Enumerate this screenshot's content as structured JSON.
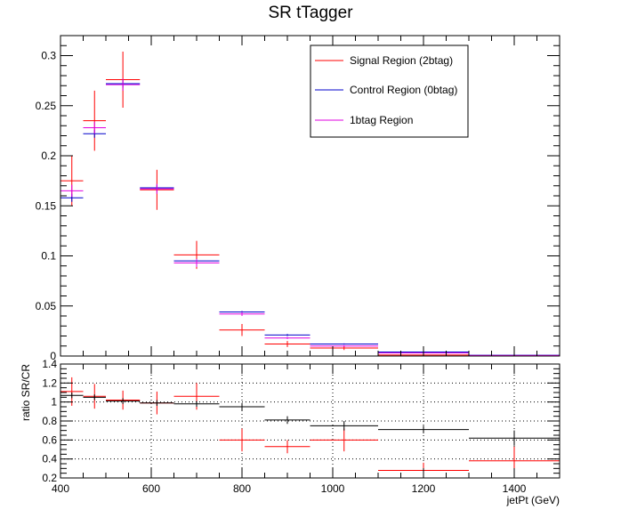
{
  "title": "SR tTagger",
  "colors": {
    "signal": "#ff0000",
    "control": "#0000cc",
    "onebtag": "#e000e0",
    "ratio": "#000000"
  },
  "legend": {
    "placement": "top-right",
    "entries": [
      "Signal Region (2btag)",
      "Control Region (0btag)",
      "1btag Region"
    ]
  },
  "chart_data": [
    {
      "type": "scatter",
      "title": "SR tTagger",
      "xlim": [
        400,
        1500
      ],
      "ylim": [
        0,
        0.32
      ],
      "x_ticks": [
        400,
        600,
        800,
        1000,
        1200,
        1400
      ],
      "y_ticks": [
        0,
        0.05,
        0.1,
        0.15,
        0.2,
        0.25,
        0.3
      ],
      "y_tick_labels": [
        "0",
        "0.05",
        "0.1",
        "0.15",
        "0.2",
        "0.25",
        "0.3"
      ],
      "bins": [
        [
          400,
          450
        ],
        [
          450,
          500
        ],
        [
          500,
          575
        ],
        [
          575,
          650
        ],
        [
          650,
          750
        ],
        [
          750,
          850
        ],
        [
          850,
          950
        ],
        [
          950,
          1100
        ],
        [
          1100,
          1300
        ],
        [
          1300,
          1500
        ]
      ],
      "series": [
        {
          "name": "Signal Region (2btag)",
          "color": "#ff0000",
          "values": [
            0.175,
            0.235,
            0.276,
            0.166,
            0.101,
            0.026,
            0.012,
            0.008,
            0.001,
            0.0003
          ],
          "errors": [
            0.025,
            0.03,
            0.028,
            0.02,
            0.014,
            0.006,
            0.003,
            0.002,
            0.0005,
            0.0002
          ]
        },
        {
          "name": "Control Region (0btag)",
          "color": "#0000cc",
          "values": [
            0.158,
            0.222,
            0.272,
            0.168,
            0.095,
            0.044,
            0.021,
            0.012,
            0.004,
            0.0008
          ],
          "errors": [
            0.004,
            0.004,
            0.004,
            0.003,
            0.002,
            0.001,
            0.001,
            0.0006,
            0.0003,
            0.0002
          ]
        },
        {
          "name": "1btag Region",
          "color": "#e000e0",
          "values": [
            0.165,
            0.228,
            0.271,
            0.167,
            0.093,
            0.042,
            0.018,
            0.01,
            0.003,
            0.0006
          ],
          "errors": [
            0.006,
            0.006,
            0.006,
            0.005,
            0.004,
            0.002,
            0.001,
            0.0008,
            0.0004,
            0.0002
          ]
        }
      ]
    },
    {
      "type": "scatter",
      "xlabel": "jetPt (GeV)",
      "ylabel": "ratio SR/CR",
      "xlim": [
        400,
        1500
      ],
      "ylim": [
        0.2,
        1.4
      ],
      "grid": true,
      "x_ticks": [
        400,
        600,
        800,
        1000,
        1200,
        1400
      ],
      "y_ticks": [
        0.2,
        0.4,
        0.6,
        0.8,
        1,
        1.2,
        1.4
      ],
      "y_tick_labels": [
        "0.2",
        "0.4",
        "0.6",
        "0.8",
        "1",
        "1.2",
        "1.4"
      ],
      "bins": [
        [
          400,
          450
        ],
        [
          450,
          500
        ],
        [
          500,
          575
        ],
        [
          575,
          650
        ],
        [
          650,
          750
        ],
        [
          750,
          850
        ],
        [
          850,
          950
        ],
        [
          950,
          1100
        ],
        [
          1100,
          1300
        ],
        [
          1300,
          1500
        ]
      ],
      "series": [
        {
          "color": "#ff0000",
          "values": [
            1.11,
            1.06,
            1.02,
            0.99,
            1.06,
            0.6,
            0.53,
            0.6,
            0.28,
            0.38
          ],
          "errors": [
            0.15,
            0.13,
            0.1,
            0.12,
            0.14,
            0.12,
            0.07,
            0.12,
            0.08,
            0.15
          ]
        },
        {
          "color": "#000000",
          "values": [
            1.07,
            1.05,
            1.01,
            0.99,
            0.98,
            0.95,
            0.81,
            0.75,
            0.71,
            0.62
          ],
          "errors": [
            0.03,
            0.03,
            0.03,
            0.03,
            0.03,
            0.04,
            0.04,
            0.05,
            0.04,
            0.08
          ]
        }
      ]
    }
  ]
}
